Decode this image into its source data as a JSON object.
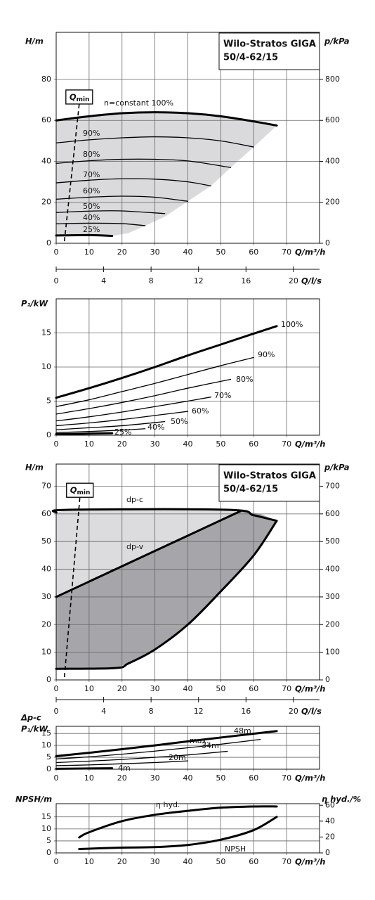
{
  "chart_data": [
    {
      "type": "line",
      "title": "Wilo-Stratos GIGA",
      "subtitle": "50/4-62/15",
      "ylabel": "H/m",
      "y2label": "p/kPa",
      "xlabel": "Q/m³/h",
      "x2label": "Q/l/s",
      "xlim": [
        0,
        80
      ],
      "xticks": [
        0,
        10,
        20,
        30,
        40,
        50,
        60,
        70
      ],
      "ylim": [
        0,
        103
      ],
      "yticks": [
        0,
        20,
        40,
        60,
        80
      ],
      "y2lim": [
        0,
        1030
      ],
      "y2ticks": [
        0,
        200,
        400,
        600,
        800
      ],
      "x2lim": [
        0,
        22.2
      ],
      "x2ticks": [
        0,
        4,
        8,
        12,
        16,
        20
      ],
      "grid": true,
      "qmin": {
        "label": "Q",
        "subscript": "min",
        "x": [
          2.5,
          7
        ],
        "y": [
          1,
          68
        ]
      },
      "series": [
        {
          "kind": "area",
          "color": "#dadadc",
          "x": [
            0,
            10,
            20,
            30,
            40,
            50,
            60,
            67,
            60,
            53,
            47,
            40,
            33,
            27,
            22,
            17,
            0
          ],
          "values": [
            60,
            62,
            63.5,
            64,
            63.5,
            62,
            59.5,
            57.5,
            47,
            37,
            28,
            20.5,
            13,
            8.5,
            5,
            3.5,
            3.5
          ]
        },
        {
          "label": "n=constant 100%",
          "linewidth": 3,
          "x": [
            0,
            10,
            20,
            30,
            40,
            50,
            60,
            67
          ],
          "values": [
            60,
            62,
            63.5,
            64,
            63.5,
            62,
            59.5,
            57.5
          ]
        },
        {
          "label": "90%",
          "x": [
            0,
            10,
            20,
            30,
            40,
            50,
            60
          ],
          "values": [
            49,
            50.5,
            51.5,
            52,
            51.5,
            50,
            47
          ]
        },
        {
          "label": "80%",
          "x": [
            0,
            10,
            20,
            30,
            40,
            53
          ],
          "values": [
            39,
            40.3,
            41,
            41,
            40.2,
            37
          ]
        },
        {
          "label": "70%",
          "x": [
            0,
            10,
            20,
            30,
            40,
            47
          ],
          "values": [
            29.5,
            30.8,
            31.5,
            31.3,
            30,
            28
          ]
        },
        {
          "label": "60%",
          "x": [
            0,
            10,
            20,
            30,
            40
          ],
          "values": [
            21.5,
            22.5,
            23,
            22.5,
            20.5
          ]
        },
        {
          "label": "50%",
          "x": [
            0,
            10,
            20,
            33
          ],
          "values": [
            15,
            15.7,
            15.8,
            14.5
          ]
        },
        {
          "label": "40%",
          "x": [
            0,
            10,
            20,
            27
          ],
          "values": [
            9.5,
            9.8,
            9.6,
            8.6
          ]
        },
        {
          "label": "25%",
          "linewidth": 3,
          "x": [
            0,
            10,
            17
          ],
          "values": [
            3.8,
            4,
            3.6
          ]
        }
      ]
    },
    {
      "type": "line",
      "ylabel": "P₁/kW",
      "xlabel": "Q/m³/h",
      "xlim": [
        0,
        80
      ],
      "xticks": [
        0,
        10,
        20,
        30,
        40,
        50,
        60,
        70
      ],
      "ylim": [
        0,
        20
      ],
      "yticks": [
        0,
        5,
        10,
        15
      ],
      "grid": true,
      "series": [
        {
          "label": "100%",
          "linewidth": 3,
          "x": [
            0,
            10,
            20,
            30,
            40,
            50,
            60,
            67
          ],
          "values": [
            5.5,
            6.9,
            8.4,
            10,
            11.7,
            13.3,
            14.9,
            16
          ]
        },
        {
          "label": "90%",
          "x": [
            0,
            10,
            20,
            30,
            40,
            50,
            60
          ],
          "values": [
            4.2,
            5.2,
            6.4,
            7.6,
            8.9,
            10.2,
            11.4
          ]
        },
        {
          "label": "80%",
          "x": [
            0,
            10,
            20,
            30,
            40,
            53
          ],
          "values": [
            3.1,
            3.9,
            4.8,
            5.8,
            6.9,
            8.2
          ]
        },
        {
          "label": "70%",
          "x": [
            0,
            10,
            20,
            30,
            40,
            47
          ],
          "values": [
            2.1,
            2.7,
            3.4,
            4.2,
            5,
            5.6
          ]
        },
        {
          "label": "60%",
          "x": [
            0,
            10,
            20,
            30,
            40
          ],
          "values": [
            1.4,
            1.8,
            2.3,
            2.9,
            3.5
          ]
        },
        {
          "label": "50%",
          "x": [
            0,
            10,
            20,
            33
          ],
          "values": [
            0.8,
            1.1,
            1.4,
            2
          ]
        },
        {
          "label": "40%",
          "x": [
            0,
            10,
            20,
            27
          ],
          "values": [
            0.4,
            0.55,
            0.75,
            0.95
          ]
        },
        {
          "label": "25%",
          "linewidth": 3,
          "x": [
            0,
            17
          ],
          "values": [
            0.15,
            0.3
          ]
        }
      ]
    },
    {
      "type": "line",
      "title": "Wilo-Stratos GIGA",
      "subtitle": "50/4-62/15",
      "ylabel": "H/m",
      "y2label": "p/kPa",
      "xlabel": "Q/m³/h",
      "x2label": "Q/l/s",
      "xlim": [
        0,
        80
      ],
      "xticks": [
        0,
        10,
        20,
        30,
        40,
        50,
        60,
        70
      ],
      "ylim": [
        0,
        78
      ],
      "yticks": [
        0,
        10,
        20,
        30,
        40,
        50,
        60,
        70
      ],
      "y2lim": [
        0,
        780
      ],
      "y2ticks": [
        0,
        100,
        200,
        300,
        400,
        500,
        600,
        700
      ],
      "x2lim": [
        0,
        22.2
      ],
      "x2ticks": [
        0,
        4,
        8,
        12,
        16,
        20
      ],
      "grid": true,
      "qmin": {
        "label": "Q",
        "subscript": "min",
        "x": [
          2.5,
          7.2
        ],
        "y": [
          1,
          66
        ]
      },
      "series": [
        {
          "kind": "area",
          "color": "#dcdcdf",
          "x": [
            0,
            4,
            52,
            56,
            0
          ],
          "values": [
            60.5,
            61.5,
            61.5,
            61,
            30
          ]
        },
        {
          "kind": "area",
          "color": "#a6a6aa",
          "x": [
            0,
            56,
            62,
            67,
            60,
            50,
            40,
            30,
            22,
            18,
            0
          ],
          "values": [
            30,
            61,
            60,
            57.5,
            45,
            32,
            20,
            11,
            6,
            4.3,
            4
          ]
        },
        {
          "label": "dp-c",
          "linewidth": 3,
          "x": [
            0,
            4,
            52,
            60,
            67
          ],
          "values": [
            60.5,
            61.5,
            61.5,
            59.5,
            57.5
          ]
        },
        {
          "label": "dp-v",
          "linewidth": 3,
          "x": [
            0,
            56
          ],
          "values": [
            30,
            61
          ]
        },
        {
          "linewidth": 3,
          "x": [
            0,
            18,
            22,
            30,
            40,
            50,
            60,
            67
          ],
          "values": [
            4,
            4.3,
            6,
            11,
            20,
            32,
            45,
            57.5
          ]
        }
      ]
    },
    {
      "type": "line",
      "ylabel_prefix": "Δp-c",
      "ylabel": "P₁/kW",
      "xlabel": "Q/m³/h",
      "xlim": [
        0,
        80
      ],
      "xticks": [
        0,
        10,
        20,
        30,
        40,
        50,
        60,
        70
      ],
      "ylim": [
        0,
        18
      ],
      "yticks": [
        0,
        5,
        10,
        15
      ],
      "grid": true,
      "series": [
        {
          "label": "max.",
          "linewidth": 3,
          "x": [
            0,
            10,
            20,
            30,
            40,
            50,
            60,
            67
          ],
          "values": [
            5.5,
            6.9,
            8.4,
            10,
            11.7,
            13.3,
            14.9,
            16
          ]
        },
        {
          "label": "48m",
          "x": [
            0,
            10,
            20,
            30,
            40,
            50,
            62
          ],
          "values": [
            4.3,
            5.2,
            6.3,
            7.6,
            9,
            10.5,
            12.5
          ]
        },
        {
          "label": "34m",
          "x": [
            0,
            10,
            20,
            30,
            40,
            52
          ],
          "values": [
            2.8,
            3.4,
            4.1,
            5,
            6,
            7.5
          ]
        },
        {
          "label": "20m",
          "x": [
            0,
            10,
            20,
            30,
            40
          ],
          "values": [
            1.5,
            1.8,
            2.3,
            2.8,
            3.5
          ]
        },
        {
          "label": "4m",
          "linewidth": 3,
          "x": [
            0,
            17
          ],
          "values": [
            0.2,
            0.4
          ]
        }
      ]
    },
    {
      "type": "line",
      "ylabel": "NPSH/m",
      "y2label": "η hyd./%",
      "xlabel": "Q/m³/h",
      "xlim": [
        0,
        80
      ],
      "xticks": [
        0,
        10,
        20,
        30,
        40,
        50,
        60,
        70
      ],
      "ylim": [
        0,
        20.5
      ],
      "yticks": [
        0,
        5,
        10,
        15
      ],
      "y2lim": [
        0,
        62
      ],
      "y2ticks": [
        0,
        20,
        40,
        60
      ],
      "grid": true,
      "series": [
        {
          "label": "η hyd.",
          "axis": "y2",
          "linewidth": 3,
          "x": [
            7,
            10,
            20,
            30,
            40,
            50,
            60,
            67
          ],
          "values": [
            19.5,
            26,
            40,
            48,
            53,
            57,
            58.5,
            58.5
          ]
        },
        {
          "label": "NPSH",
          "linewidth": 3,
          "x": [
            7,
            20,
            30,
            40,
            50,
            60,
            67
          ],
          "values": [
            1.6,
            2.2,
            2.4,
            3.3,
            5.5,
            9.5,
            15
          ]
        }
      ]
    }
  ]
}
